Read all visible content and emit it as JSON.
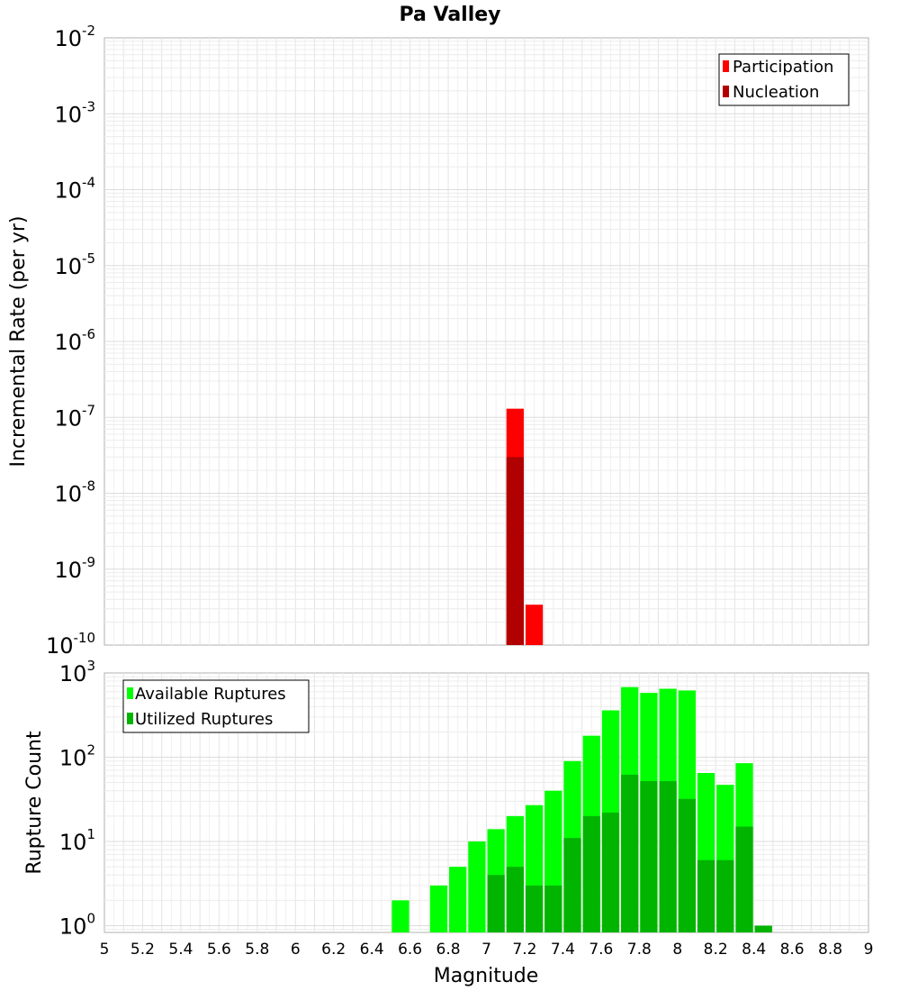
{
  "chart_data": {
    "title": "Pa Valley",
    "xlabel": "Magnitude",
    "x_ticks": [
      "5",
      "5.2",
      "5.4",
      "5.6",
      "5.8",
      "6",
      "6.2",
      "6.4",
      "6.6",
      "6.8",
      "7",
      "7.2",
      "7.4",
      "7.6",
      "7.8",
      "8",
      "8.2",
      "8.4",
      "8.6",
      "8.8",
      "9"
    ],
    "xlim": [
      5,
      9
    ],
    "bin_width": 0.1,
    "panels": [
      {
        "type": "bar",
        "ylabel": "Incremental Rate (per yr)",
        "yscale": "log",
        "ylim_exp": [
          -10,
          -2
        ],
        "ytick_exponents": [
          "-2",
          "-3",
          "-4",
          "-5",
          "-6",
          "-7",
          "-8",
          "-9",
          "-10"
        ],
        "legend_position": "top-right",
        "grid": true,
        "series": [
          {
            "name": "Participation",
            "color": "#ff0000",
            "x": [
              7.15,
              7.25
            ],
            "values": [
              1.3e-07,
              3.4e-10
            ]
          },
          {
            "name": "Nucleation",
            "color": "#b00000",
            "x": [
              7.15
            ],
            "values": [
              3e-08
            ]
          }
        ]
      },
      {
        "type": "bar",
        "ylabel": "Rupture Count",
        "yscale": "log",
        "ylim_exp": [
          -0.08,
          3
        ],
        "ytick_exponents": [
          "3",
          "2",
          "1",
          "0"
        ],
        "legend_position": "top-left",
        "grid": true,
        "series": [
          {
            "name": "Available Ruptures",
            "color": "#00ff00",
            "x": [
              6.55,
              6.75,
              6.85,
              6.95,
              7.05,
              7.15,
              7.25,
              7.35,
              7.45,
              7.55,
              7.65,
              7.75,
              7.85,
              7.95,
              8.05,
              8.15,
              8.25,
              8.35,
              8.45
            ],
            "values": [
              2,
              3,
              5,
              10,
              14,
              20,
              27,
              40,
              90,
              180,
              360,
              680,
              580,
              650,
              620,
              65,
              47,
              85,
              1
            ]
          },
          {
            "name": "Utilized Ruptures",
            "color": "#00b400",
            "x": [
              7.05,
              7.15,
              7.25,
              7.35,
              7.45,
              7.55,
              7.65,
              7.75,
              7.85,
              7.95,
              8.05,
              8.15,
              8.25,
              8.35,
              8.45
            ],
            "values": [
              4,
              5,
              3,
              3,
              11,
              20,
              22,
              62,
              52,
              52,
              32,
              6,
              6,
              15,
              1
            ]
          }
        ]
      }
    ]
  }
}
